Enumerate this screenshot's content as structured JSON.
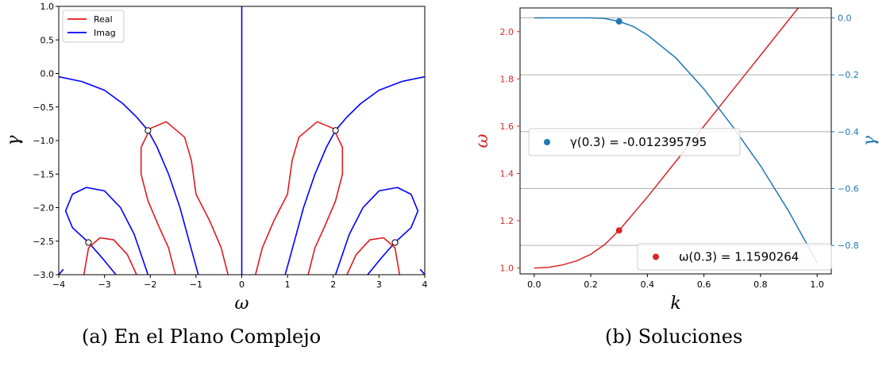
{
  "chart_data": [
    {
      "type": "line",
      "caption": "(a) En el Plano Complejo",
      "xlabel": "ω",
      "ylabel": "γ",
      "xlim": [
        -4,
        4
      ],
      "ylim": [
        -3.0,
        1.0
      ],
      "xticks": [
        "−4",
        "−3",
        "−2",
        "−1",
        "0",
        "1",
        "2",
        "3",
        "4"
      ],
      "yticks": [
        "1.0",
        "0.5",
        "0.0",
        "−0.5",
        "−1.0",
        "−1.5",
        "−2.0",
        "−2.5",
        "−3.0"
      ],
      "legend": {
        "placement": "top-left",
        "entries": [
          "Real",
          "Imag"
        ]
      },
      "colors": {
        "real": "#e31a1c",
        "imag": "#0000ff"
      },
      "series": [
        {
          "name": "Imag",
          "color": "#0000ff",
          "points": [
            [
              0,
              -3.0
            ],
            [
              0,
              1.0
            ]
          ]
        },
        {
          "name": "Imag",
          "color": "#0000ff",
          "points": [
            [
              -4,
              -0.05
            ],
            [
              -3.5,
              -0.12
            ],
            [
              -3.0,
              -0.25
            ],
            [
              -2.6,
              -0.45
            ],
            [
              -2.3,
              -0.65
            ],
            [
              -2.05,
              -0.85
            ],
            [
              -1.85,
              -1.1
            ],
            [
              -1.6,
              -1.5
            ],
            [
              -1.35,
              -2.0
            ],
            [
              -1.15,
              -2.5
            ],
            [
              -0.95,
              -3.0
            ]
          ]
        },
        {
          "name": "Imag",
          "color": "#0000ff",
          "points": [
            [
              4,
              -0.05
            ],
            [
              3.5,
              -0.12
            ],
            [
              3.0,
              -0.25
            ],
            [
              2.6,
              -0.45
            ],
            [
              2.3,
              -0.65
            ],
            [
              2.05,
              -0.85
            ],
            [
              1.85,
              -1.1
            ],
            [
              1.6,
              -1.5
            ],
            [
              1.35,
              -2.0
            ],
            [
              1.15,
              -2.5
            ],
            [
              0.95,
              -3.0
            ]
          ]
        },
        {
          "name": "Imag",
          "color": "#0000ff",
          "points": [
            [
              -2.75,
              -3.0
            ],
            [
              -3.05,
              -2.75
            ],
            [
              -3.35,
              -2.52
            ],
            [
              -3.7,
              -2.3
            ],
            [
              -3.85,
              -2.05
            ],
            [
              -3.7,
              -1.8
            ],
            [
              -3.4,
              -1.7
            ],
            [
              -3.0,
              -1.75
            ],
            [
              -2.65,
              -2.0
            ],
            [
              -2.35,
              -2.4
            ],
            [
              -2.05,
              -3.0
            ]
          ]
        },
        {
          "name": "Imag",
          "color": "#0000ff",
          "points": [
            [
              2.75,
              -3.0
            ],
            [
              3.05,
              -2.75
            ],
            [
              3.35,
              -2.52
            ],
            [
              3.7,
              -2.3
            ],
            [
              3.85,
              -2.05
            ],
            [
              3.7,
              -1.8
            ],
            [
              3.4,
              -1.7
            ],
            [
              3.0,
              -1.75
            ],
            [
              2.65,
              -2.0
            ],
            [
              2.35,
              -2.4
            ],
            [
              2.05,
              -3.0
            ]
          ]
        },
        {
          "name": "Imag",
          "color": "#0000ff",
          "points": [
            [
              -4,
              -3.0
            ],
            [
              -3.9,
              -2.92
            ]
          ]
        },
        {
          "name": "Imag",
          "color": "#0000ff",
          "points": [
            [
              4,
              -3.0
            ],
            [
              3.9,
              -2.92
            ]
          ]
        },
        {
          "name": "Real",
          "color": "#e31a1c",
          "points": [
            [
              -0.3,
              -3.0
            ],
            [
              -0.45,
              -2.6
            ],
            [
              -0.7,
              -2.2
            ],
            [
              -1.0,
              -1.8
            ],
            [
              -1.1,
              -1.3
            ],
            [
              -1.25,
              -0.95
            ],
            [
              -1.65,
              -0.72
            ],
            [
              -2.0,
              -0.82
            ],
            [
              -2.2,
              -1.1
            ],
            [
              -2.2,
              -1.5
            ],
            [
              -2.05,
              -1.9
            ],
            [
              -1.8,
              -2.3
            ],
            [
              -1.6,
              -2.6
            ],
            [
              -1.45,
              -3.0
            ]
          ]
        },
        {
          "name": "Real",
          "color": "#e31a1c",
          "points": [
            [
              0.3,
              -3.0
            ],
            [
              0.45,
              -2.6
            ],
            [
              0.7,
              -2.2
            ],
            [
              1.0,
              -1.8
            ],
            [
              1.1,
              -1.3
            ],
            [
              1.25,
              -0.95
            ],
            [
              1.65,
              -0.72
            ],
            [
              2.0,
              -0.82
            ],
            [
              2.2,
              -1.1
            ],
            [
              2.2,
              -1.5
            ],
            [
              2.05,
              -1.9
            ],
            [
              1.8,
              -2.3
            ],
            [
              1.6,
              -2.6
            ],
            [
              1.45,
              -3.0
            ]
          ]
        },
        {
          "name": "Real",
          "color": "#e31a1c",
          "points": [
            [
              -2.3,
              -3.0
            ],
            [
              -2.5,
              -2.7
            ],
            [
              -2.8,
              -2.48
            ],
            [
              -3.1,
              -2.45
            ],
            [
              -3.35,
              -2.6
            ],
            [
              -3.45,
              -3.0
            ]
          ]
        },
        {
          "name": "Real",
          "color": "#e31a1c",
          "points": [
            [
              2.3,
              -3.0
            ],
            [
              2.5,
              -2.7
            ],
            [
              2.8,
              -2.48
            ],
            [
              3.1,
              -2.45
            ],
            [
              3.35,
              -2.6
            ],
            [
              3.45,
              -3.0
            ]
          ]
        }
      ],
      "markers": [
        [
          -2.05,
          -0.85
        ],
        [
          2.05,
          -0.85
        ],
        [
          -3.35,
          -2.52
        ],
        [
          3.35,
          -2.52
        ]
      ]
    },
    {
      "type": "line",
      "caption": "(b) Soluciones",
      "xlabel": "k",
      "ylabel_left": "ω",
      "ylabel_right": "γ",
      "xlim": [
        -0.05,
        1.05
      ],
      "ylim_left": [
        0.975,
        2.1
      ],
      "ylim_right": [
        -0.9,
        0.035
      ],
      "xticks": [
        "0.0",
        "0.2",
        "0.4",
        "0.6",
        "0.8",
        "1.0"
      ],
      "yticks_left": [
        "1.0",
        "1.2",
        "1.4",
        "1.6",
        "1.8",
        "2.0"
      ],
      "yticks_right": [
        "0.0",
        "−0.2",
        "−0.4",
        "−0.6",
        "−0.8"
      ],
      "grid": true,
      "colors": {
        "omega": "#d62728",
        "gamma": "#1f77b4"
      },
      "series": [
        {
          "name": "ω",
          "axis": "left",
          "color": "#d62728",
          "x": [
            0,
            0.05,
            0.1,
            0.15,
            0.2,
            0.25,
            0.3,
            0.4,
            0.5,
            0.6,
            0.7,
            0.8,
            0.9,
            1.0
          ],
          "y": [
            1.0,
            1.003,
            1.013,
            1.03,
            1.058,
            1.1,
            1.159,
            1.3,
            1.45,
            1.6,
            1.75,
            1.9,
            2.05,
            2.2
          ]
        },
        {
          "name": "γ",
          "axis": "right",
          "color": "#1f77b4",
          "x": [
            0,
            0.05,
            0.1,
            0.15,
            0.2,
            0.25,
            0.3,
            0.35,
            0.4,
            0.5,
            0.6,
            0.7,
            0.8,
            0.9,
            1.0
          ],
          "y": [
            0.0,
            0.0,
            0.0,
            0.0,
            0.0,
            -0.002,
            -0.0124,
            -0.03,
            -0.06,
            -0.14,
            -0.25,
            -0.38,
            -0.52,
            -0.68,
            -0.86
          ]
        }
      ],
      "annotations": [
        {
          "label": "γ(0.3) = -0.012395795",
          "x": 0.3,
          "y": -0.012395795,
          "axis": "right",
          "color": "#1f77b4"
        },
        {
          "label": "ω(0.3) = 1.1590264",
          "x": 0.3,
          "y": 1.1590264,
          "axis": "left",
          "color": "#d62728"
        }
      ]
    }
  ]
}
